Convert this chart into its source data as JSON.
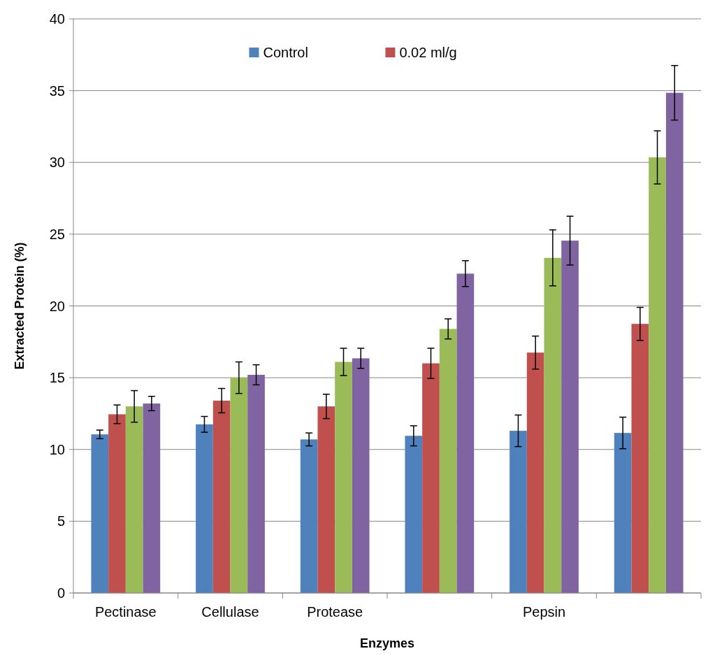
{
  "chart_data": {
    "type": "bar",
    "xlabel": "Enzymes",
    "ylabel": "Extracted Protein (%)",
    "categories": [
      "Pectinase",
      "Cellulase",
      "Protease",
      null,
      "Pepsin",
      null
    ],
    "series": [
      {
        "name": "Control",
        "color": "#4f81bd",
        "values": [
          11.05,
          11.75,
          10.7,
          10.95,
          11.3,
          11.15
        ],
        "errors": [
          0.3,
          0.55,
          0.45,
          0.7,
          1.1,
          1.1
        ]
      },
      {
        "name": "0.02 ml/g",
        "color": "#c0504d",
        "values": [
          12.45,
          13.4,
          13.0,
          16.0,
          16.75,
          18.75
        ],
        "errors": [
          0.65,
          0.85,
          0.85,
          1.05,
          1.15,
          1.15
        ]
      },
      {
        "color": "#9bbb59",
        "values": [
          13.0,
          15.0,
          16.1,
          18.4,
          23.35,
          30.35
        ],
        "errors": [
          1.1,
          1.1,
          0.95,
          0.7,
          1.95,
          1.85
        ]
      },
      {
        "color": "#8064a2",
        "values": [
          13.2,
          15.2,
          16.35,
          22.25,
          24.55,
          34.85
        ],
        "errors": [
          0.5,
          0.7,
          0.7,
          0.9,
          1.7,
          1.9
        ]
      }
    ],
    "ylim": [
      0,
      40
    ],
    "yticks": [
      0,
      5,
      10,
      15,
      20,
      25,
      30,
      35,
      40
    ],
    "grid": "y",
    "legend": "top"
  }
}
